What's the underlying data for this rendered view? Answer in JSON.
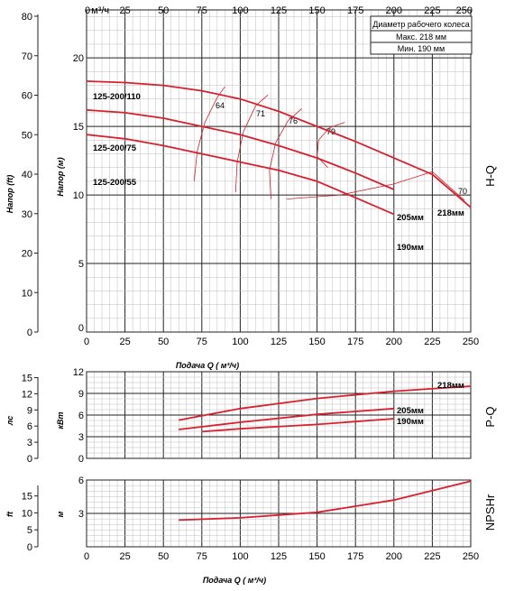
{
  "chart_data": [
    {
      "id": "hq",
      "type": "line",
      "side_label": "H-Q",
      "x_top_unit": "м³/ч",
      "x_top_ticks": [
        0,
        25,
        50,
        75,
        100,
        125,
        150,
        175,
        200,
        225,
        250
      ],
      "xlabel": "Подача Q ( м³/ч)",
      "xlim": [
        0,
        250
      ],
      "x_bottom_ticks": [
        0,
        25,
        50,
        75,
        100,
        125,
        150,
        175,
        200,
        225,
        250
      ],
      "ylabel_left": "Напор (ft)",
      "ylabel_right": "Напор (м)",
      "ylim_m": [
        0,
        23.5
      ],
      "ylim_ft": [
        0,
        80
      ],
      "y_ft_ticks": [
        0,
        10,
        20,
        30,
        40,
        50,
        60,
        70,
        80
      ],
      "y_m_ticks": [
        5,
        10,
        15,
        20
      ],
      "legend_box": {
        "title": "Диаметр рабочего колеса",
        "rows": [
          "Макс. 218 мм",
          "Мин. 190 мм"
        ]
      },
      "model_labels": [
        "125-200/110",
        "125-200/75",
        "125-200/55"
      ],
      "series": [
        {
          "name": "218мм",
          "x": [
            0,
            25,
            50,
            75,
            100,
            125,
            150,
            175,
            200,
            225,
            250
          ],
          "y": [
            18.3,
            18.2,
            18.0,
            17.6,
            17.0,
            16.1,
            15.0,
            13.9,
            12.7,
            11.5,
            9.1
          ]
        },
        {
          "name": "205мм",
          "x": [
            0,
            25,
            50,
            75,
            100,
            125,
            150,
            175,
            200
          ],
          "y": [
            16.2,
            16.0,
            15.6,
            15.0,
            14.4,
            13.6,
            12.7,
            11.6,
            10.4
          ]
        },
        {
          "name": "190мм",
          "x": [
            0,
            25,
            50,
            75,
            100,
            125,
            150,
            175,
            200
          ],
          "y": [
            14.4,
            14.1,
            13.6,
            13.0,
            12.4,
            11.8,
            11.0,
            9.8,
            8.6
          ]
        }
      ],
      "efficiency": [
        {
          "label": "64",
          "x": [
            70,
            72,
            77,
            85,
            90
          ],
          "y": [
            11.0,
            13.2,
            15.3,
            17.1,
            17.9
          ]
        },
        {
          "label": "71",
          "x": [
            97,
            98,
            102,
            110,
            118
          ],
          "y": [
            10.2,
            12.4,
            14.6,
            16.5,
            17.3
          ]
        },
        {
          "label": "76",
          "x": [
            120,
            119,
            123,
            131,
            140
          ],
          "y": [
            9.7,
            11.8,
            13.8,
            15.4,
            16.3
          ]
        },
        {
          "label": "79",
          "x": [
            157,
            150,
            151,
            158,
            168
          ],
          "y": [
            12.0,
            12.8,
            14.0,
            14.9,
            15.3
          ]
        },
        {
          "label": "70",
          "x": [
            130,
            165,
            200,
            225,
            246
          ],
          "y": [
            9.7,
            10.0,
            10.8,
            11.7,
            9.6
          ]
        }
      ]
    },
    {
      "id": "pq",
      "type": "line",
      "side_label": "P-Q",
      "ylabel_left": "лс",
      "ylabel_right": "кВт",
      "xlim": [
        0,
        250
      ],
      "ylim_kw": [
        0,
        12
      ],
      "y_kw_ticks": [
        0,
        3,
        6,
        9,
        12
      ],
      "ylim_hp": [
        0,
        16.1
      ],
      "y_hp_ticks": [
        0,
        3,
        6,
        9,
        12,
        15
      ],
      "series": [
        {
          "name": "218мм",
          "x": [
            60,
            100,
            150,
            200,
            250
          ],
          "y": [
            5.3,
            6.9,
            8.3,
            9.3,
            10.0
          ]
        },
        {
          "name": "205мм",
          "x": [
            60,
            100,
            150,
            200
          ],
          "y": [
            4.0,
            5.0,
            6.1,
            6.9
          ]
        },
        {
          "name": "190мм",
          "x": [
            75,
            100,
            150,
            200
          ],
          "y": [
            3.7,
            4.1,
            4.7,
            5.5
          ]
        }
      ]
    },
    {
      "id": "npsh",
      "type": "line",
      "side_label": "NPSHr",
      "xlabel": "Подача Q ( м³/ч)",
      "xlim": [
        0,
        250
      ],
      "x_bottom_ticks": [
        0,
        25,
        50,
        75,
        100,
        125,
        150,
        175,
        200,
        225,
        250
      ],
      "ylabel_left": "ft",
      "ylabel_right": "м",
      "ylim_m": [
        0,
        6
      ],
      "y_m_ticks": [
        3,
        6
      ],
      "ylim_ft": [
        0,
        19.7
      ],
      "y_ft_ticks": [
        0,
        5,
        10,
        15
      ],
      "series": [
        {
          "name": "NPSHr",
          "x": [
            60,
            100,
            150,
            200,
            250
          ],
          "y": [
            2.4,
            2.6,
            3.1,
            4.2,
            5.9
          ]
        }
      ]
    }
  ]
}
